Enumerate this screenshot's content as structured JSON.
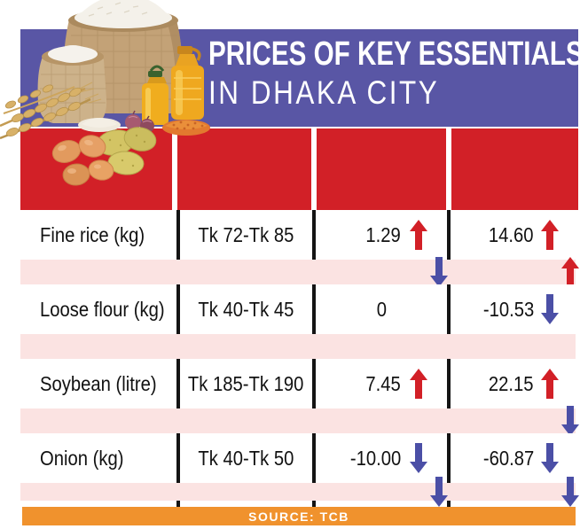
{
  "header": {
    "title_line1": "PRICES OF KEY ESSENTIALS",
    "title_line2": "IN DHAKA CITY"
  },
  "table": {
    "rows": [
      {
        "name": "Fine rice (kg)",
        "range": "Tk 72-Tk 85",
        "col3": {
          "value": "1.29",
          "arrow": "up"
        },
        "col4": {
          "value": "14.60",
          "arrow": "up"
        },
        "pink": {
          "col3": "down",
          "col4": "up"
        }
      },
      {
        "name": "Loose flour (kg)",
        "range": "Tk 40-Tk 45",
        "col3": {
          "value": "0",
          "arrow": null
        },
        "col4": {
          "value": "-10.53",
          "arrow": "down"
        },
        "pink": {
          "col3": null,
          "col4": null
        }
      },
      {
        "name": "Soybean (litre)",
        "range": "Tk 185-Tk 190",
        "col3": {
          "value": "7.45",
          "arrow": "up"
        },
        "col4": {
          "value": "22.15",
          "arrow": "up"
        },
        "pink": {
          "col3": null,
          "col4": "down"
        }
      },
      {
        "name": "Onion (kg)",
        "range": "Tk 40-Tk 50",
        "col3": {
          "value": "-10.00",
          "arrow": "down"
        },
        "col4": {
          "value": "-60.87",
          "arrow": "down"
        },
        "pink": {
          "col3": "down",
          "col4": "down"
        }
      }
    ]
  },
  "footer": {
    "source_label": "SOURCE: TCB"
  },
  "colors": {
    "banner": "#5956a5",
    "header_red": "#d22027",
    "row_pink": "#fbe3e2",
    "footer_orange": "#f0922d",
    "arrow_up_red": "#d22027",
    "arrow_down_blue": "#4b4fa6"
  },
  "illustration": {
    "items": [
      "rice-sack",
      "flour-sack",
      "wheat-stalks",
      "oil-bottle-large",
      "oil-bottle-small",
      "flour-pile",
      "onions",
      "lentils-pile",
      "eggs",
      "potatoes"
    ]
  }
}
